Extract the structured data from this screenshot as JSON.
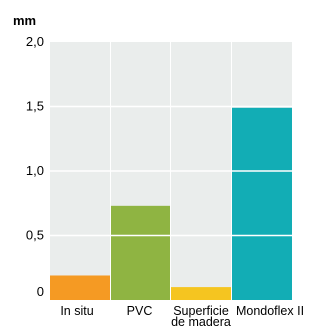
{
  "chart_data": {
    "type": "bar",
    "unit": "mm",
    "title": "",
    "xlabel": "",
    "ylabel": "mm",
    "ylim": [
      0,
      2.0
    ],
    "y_ticks": [
      "0",
      "0,5",
      "1,0",
      "1,5",
      "2,0"
    ],
    "y_tick_values": [
      0,
      0.5,
      1.0,
      1.5,
      2.0
    ],
    "grid": "horizontal",
    "categories": [
      "In situ",
      "PVC",
      "Superficie de madera",
      "Mondoflex II"
    ],
    "category_label_lines": [
      [
        "In situ"
      ],
      [
        "PVC"
      ],
      [
        "Superficie",
        "de madera"
      ],
      [
        "Mondoflex II"
      ]
    ],
    "values": [
      0.19,
      0.73,
      0.1,
      1.49
    ],
    "colors": [
      "#f59a23",
      "#8fb442",
      "#f5c520",
      "#12adb5"
    ],
    "panel_color": "#eaedec",
    "gridline_color": "#ffffff"
  }
}
